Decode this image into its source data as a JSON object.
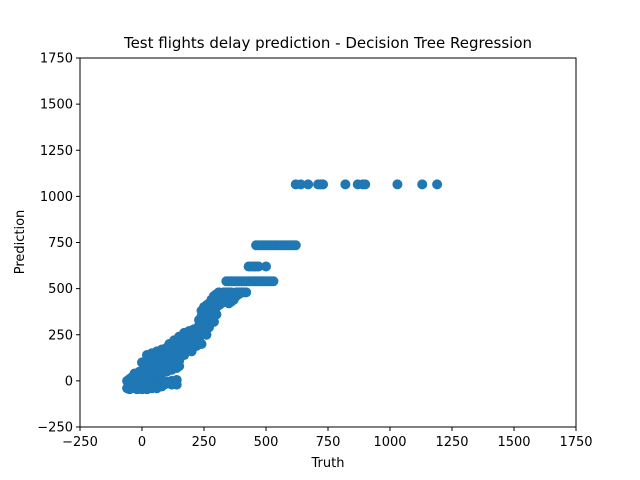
{
  "chart_data": {
    "type": "scatter",
    "title": "Test flights delay prediction - Decision Tree Regression",
    "xlabel": "Truth",
    "ylabel": "Prediction",
    "xlim": [
      -250,
      1750
    ],
    "ylim": [
      -250,
      1750
    ],
    "xticks": [
      "−250",
      "0",
      "250",
      "500",
      "750",
      "1000",
      "1250",
      "1500",
      "1750"
    ],
    "yticks": [
      "−250",
      "0",
      "250",
      "500",
      "750",
      "1000",
      "1250",
      "1500",
      "1750"
    ],
    "xtick_values": [
      -250,
      0,
      250,
      500,
      750,
      1000,
      1250,
      1500,
      1750
    ],
    "ytick_values": [
      -250,
      0,
      250,
      500,
      750,
      1000,
      1250,
      1500,
      1750
    ],
    "grid": false,
    "marker_color": "#1f77b4",
    "series": [
      {
        "points": [
          [
            -60,
            -40
          ],
          [
            -50,
            -35
          ],
          [
            -40,
            -30
          ],
          [
            -30,
            -25
          ],
          [
            -20,
            -20
          ],
          [
            -10,
            -15
          ],
          [
            0,
            -10
          ],
          [
            10,
            -5
          ],
          [
            20,
            0
          ],
          [
            30,
            5
          ],
          [
            -55,
            -20
          ],
          [
            -45,
            -10
          ],
          [
            -35,
            0
          ],
          [
            -25,
            10
          ],
          [
            -15,
            20
          ],
          [
            -5,
            30
          ],
          [
            5,
            40
          ],
          [
            15,
            50
          ],
          [
            25,
            60
          ],
          [
            35,
            70
          ],
          [
            -40,
            -40
          ],
          [
            -20,
            -35
          ],
          [
            0,
            -30
          ],
          [
            20,
            -25
          ],
          [
            40,
            -20
          ],
          [
            60,
            -15
          ],
          [
            80,
            -10
          ],
          [
            100,
            -5
          ],
          [
            120,
            0
          ],
          [
            140,
            5
          ],
          [
            -30,
            40
          ],
          [
            -10,
            50
          ],
          [
            10,
            60
          ],
          [
            30,
            70
          ],
          [
            50,
            80
          ],
          [
            70,
            90
          ],
          [
            90,
            100
          ],
          [
            110,
            110
          ],
          [
            130,
            120
          ],
          [
            150,
            130
          ],
          [
            0,
            100
          ],
          [
            20,
            110
          ],
          [
            40,
            120
          ],
          [
            60,
            130
          ],
          [
            80,
            140
          ],
          [
            100,
            150
          ],
          [
            120,
            160
          ],
          [
            140,
            170
          ],
          [
            160,
            180
          ],
          [
            180,
            190
          ],
          [
            40,
            20
          ],
          [
            60,
            30
          ],
          [
            80,
            40
          ],
          [
            100,
            50
          ],
          [
            120,
            60
          ],
          [
            140,
            70
          ],
          [
            150,
            80
          ],
          [
            60,
            -30
          ],
          [
            90,
            -20
          ],
          [
            130,
            -10
          ],
          [
            20,
            140
          ],
          [
            40,
            150
          ],
          [
            60,
            160
          ],
          [
            80,
            170
          ],
          [
            100,
            180
          ],
          [
            120,
            190
          ],
          [
            140,
            200
          ],
          [
            160,
            210
          ],
          [
            180,
            220
          ],
          [
            200,
            230
          ],
          [
            110,
            200
          ],
          [
            130,
            220
          ],
          [
            150,
            240
          ],
          [
            170,
            260
          ],
          [
            190,
            270
          ],
          [
            210,
            280
          ],
          [
            230,
            300
          ],
          [
            250,
            320
          ],
          [
            200,
            160
          ],
          [
            220,
            190
          ],
          [
            150,
            110
          ],
          [
            170,
            140
          ],
          [
            190,
            170
          ],
          [
            210,
            200
          ],
          [
            230,
            230
          ],
          [
            250,
            260
          ],
          [
            270,
            290
          ],
          [
            290,
            320
          ],
          [
            240,
            200
          ],
          [
            260,
            250
          ],
          [
            230,
            330
          ],
          [
            240,
            350
          ],
          [
            250,
            370
          ],
          [
            260,
            390
          ],
          [
            270,
            400
          ],
          [
            280,
            410
          ],
          [
            290,
            420
          ],
          [
            300,
            430
          ],
          [
            310,
            440
          ],
          [
            320,
            450
          ],
          [
            240,
            380
          ],
          [
            250,
            400
          ],
          [
            260,
            410
          ],
          [
            270,
            420
          ],
          [
            280,
            440
          ],
          [
            290,
            460
          ],
          [
            300,
            470
          ],
          [
            310,
            480
          ],
          [
            270,
            300
          ],
          [
            300,
            360
          ],
          [
            330,
            480
          ],
          [
            340,
            480
          ],
          [
            350,
            480
          ],
          [
            360,
            480
          ],
          [
            320,
            470
          ],
          [
            380,
            480
          ],
          [
            390,
            480
          ],
          [
            400,
            480
          ],
          [
            410,
            480
          ],
          [
            420,
            480
          ],
          [
            330,
            440
          ],
          [
            340,
            460
          ],
          [
            350,
            450
          ],
          [
            360,
            430
          ],
          [
            370,
            440
          ],
          [
            380,
            460
          ],
          [
            390,
            470
          ],
          [
            320,
            420
          ],
          [
            350,
            420
          ],
          [
            360,
            460
          ],
          [
            400,
            480
          ],
          [
            430,
            620
          ],
          [
            440,
            620
          ],
          [
            450,
            620
          ],
          [
            460,
            620
          ],
          [
            470,
            620
          ],
          [
            500,
            620
          ],
          [
            340,
            540
          ],
          [
            350,
            540
          ],
          [
            360,
            540
          ],
          [
            370,
            540
          ],
          [
            380,
            540
          ],
          [
            390,
            540
          ],
          [
            400,
            540
          ],
          [
            410,
            540
          ],
          [
            420,
            540
          ],
          [
            430,
            540
          ],
          [
            440,
            540
          ],
          [
            450,
            540
          ],
          [
            460,
            540
          ],
          [
            470,
            540
          ],
          [
            480,
            540
          ],
          [
            490,
            540
          ],
          [
            500,
            540
          ],
          [
            510,
            540
          ],
          [
            520,
            540
          ],
          [
            530,
            540
          ],
          [
            460,
            735
          ],
          [
            470,
            735
          ],
          [
            480,
            735
          ],
          [
            490,
            735
          ],
          [
            500,
            735
          ],
          [
            510,
            735
          ],
          [
            520,
            735
          ],
          [
            530,
            735
          ],
          [
            540,
            735
          ],
          [
            550,
            735
          ],
          [
            560,
            735
          ],
          [
            570,
            735
          ],
          [
            580,
            735
          ],
          [
            590,
            735
          ],
          [
            600,
            735
          ],
          [
            610,
            735
          ],
          [
            620,
            735
          ],
          [
            620,
            1065
          ],
          [
            640,
            1065
          ],
          [
            670,
            1065
          ],
          [
            710,
            1065
          ],
          [
            720,
            1065
          ],
          [
            730,
            1065
          ],
          [
            820,
            1065
          ],
          [
            870,
            1065
          ],
          [
            890,
            1065
          ],
          [
            900,
            1065
          ],
          [
            1030,
            1065
          ],
          [
            1130,
            1065
          ],
          [
            1190,
            1065
          ],
          [
            -60,
            0
          ],
          [
            -50,
            10
          ],
          [
            -40,
            20
          ],
          [
            -30,
            -10
          ],
          [
            -20,
            0
          ],
          [
            -10,
            10
          ],
          [
            0,
            20
          ],
          [
            10,
            30
          ],
          [
            20,
            -10
          ],
          [
            30,
            -20
          ],
          [
            40,
            80
          ],
          [
            50,
            60
          ],
          [
            60,
            70
          ],
          [
            70,
            50
          ],
          [
            80,
            60
          ],
          [
            90,
            70
          ],
          [
            100,
            80
          ],
          [
            110,
            90
          ],
          [
            120,
            100
          ],
          [
            130,
            140
          ],
          [
            140,
            150
          ],
          [
            150,
            160
          ],
          [
            160,
            170
          ],
          [
            170,
            180
          ],
          [
            180,
            200
          ],
          [
            190,
            210
          ],
          [
            200,
            220
          ],
          [
            210,
            240
          ],
          [
            220,
            250
          ],
          [
            230,
            260
          ],
          [
            240,
            270
          ],
          [
            250,
            280
          ],
          [
            260,
            300
          ],
          [
            270,
            330
          ],
          [
            280,
            350
          ],
          [
            290,
            380
          ],
          [
            300,
            400
          ],
          [
            310,
            410
          ],
          [
            320,
            430
          ],
          [
            330,
            460
          ],
          [
            140,
            -20
          ],
          [
            120,
            -20
          ],
          [
            100,
            -10
          ],
          [
            80,
            -30
          ],
          [
            60,
            -40
          ],
          [
            40,
            -40
          ],
          [
            20,
            -45
          ],
          [
            0,
            -45
          ],
          [
            -20,
            -45
          ],
          [
            -50,
            -45
          ]
        ]
      }
    ]
  }
}
